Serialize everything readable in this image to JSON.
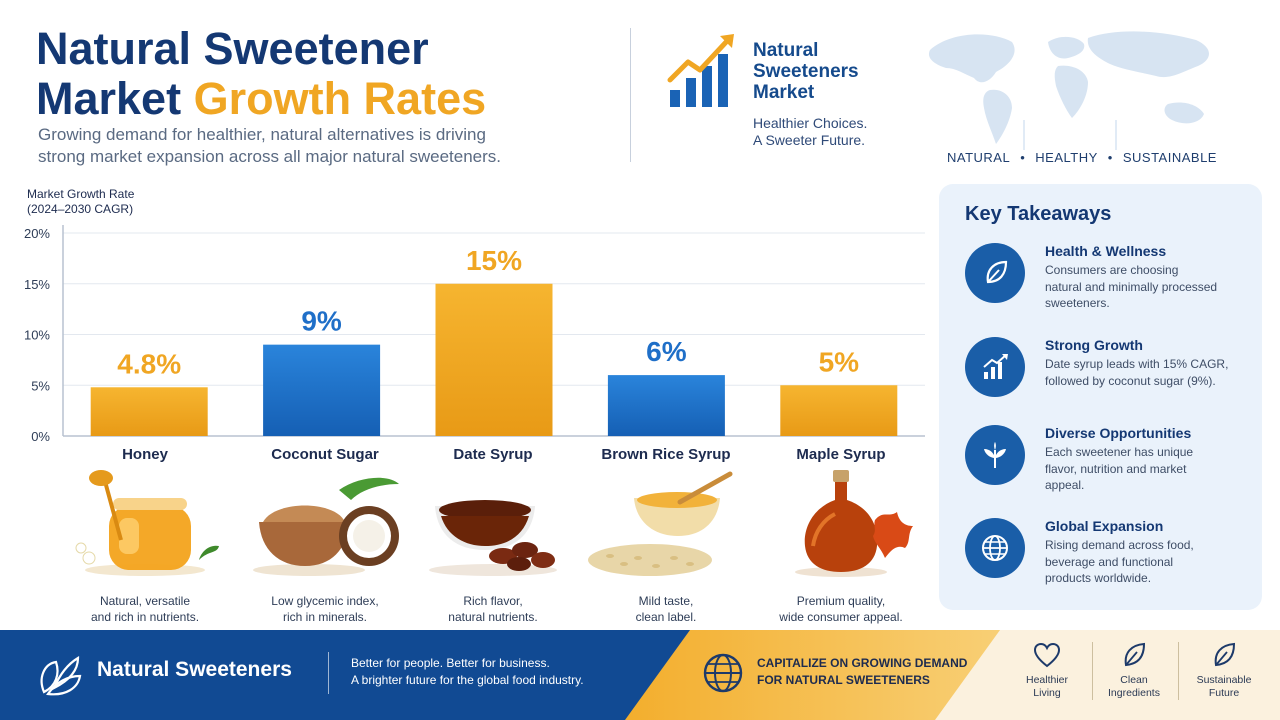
{
  "header": {
    "title_line1": "Natural Sweetener",
    "title_line2_part1": "Market ",
    "title_line2_accent": "Growth Rates",
    "subtitle_line1": "Growing demand for healthier, natural alternatives is driving",
    "subtitle_line2": "strong market expansion across all major natural sweeteners."
  },
  "brand": {
    "name_line1": "Natural",
    "name_line2": "Sweeteners",
    "name_line3": "Market",
    "tag_line1": "Healthier Choices.",
    "tag_line2": "A Sweeter Future.",
    "pillars": [
      "NATURAL",
      "HEALTHY",
      "SUSTAINABLE"
    ],
    "separator": "•"
  },
  "chart_data": {
    "type": "bar",
    "ylabel_line1": "Market Growth Rate",
    "ylabel_line2": "(2024–2030 CAGR)",
    "ylim": [
      0,
      20
    ],
    "yticks": [
      0,
      5,
      10,
      15,
      20
    ],
    "ytick_labels": [
      "0%",
      "5%",
      "10%",
      "15%",
      "20%"
    ],
    "grid": true,
    "categories": [
      "Honey",
      "Coconut Sugar",
      "Date Syrup",
      "Brown Rice Syrup",
      "Maple Syrup"
    ],
    "values": [
      4.8,
      9,
      15,
      6,
      5
    ],
    "data_labels": [
      "4.8%",
      "9%",
      "15%",
      "6%",
      "5%"
    ],
    "bar_colors": [
      "#f0a623",
      "#1f6fc8",
      "#f0a623",
      "#1f6fc8",
      "#f0a623"
    ]
  },
  "products": [
    {
      "name": "Honey",
      "desc_line1": "Natural, versatile",
      "desc_line2": "and rich in nutrients."
    },
    {
      "name": "Coconut Sugar",
      "desc_line1": "Low glycemic index,",
      "desc_line2": "rich in minerals."
    },
    {
      "name": "Date Syrup",
      "desc_line1": "Rich flavor,",
      "desc_line2": "natural nutrients."
    },
    {
      "name": "Brown Rice Syrup",
      "desc_line1": "Mild taste,",
      "desc_line2": "clean label."
    },
    {
      "name": "Maple Syrup",
      "desc_line1": "Premium quality,",
      "desc_line2": "wide consumer appeal."
    }
  ],
  "takeaways": {
    "title": "Key Takeaways",
    "items": [
      {
        "icon": "leaf-icon",
        "title": "Health & Wellness",
        "l1": "Consumers are choosing",
        "l2": "natural and minimally processed",
        "l3": "sweeteners."
      },
      {
        "icon": "growth-chart-icon",
        "title": "Strong Growth",
        "l1": "Date syrup leads with 15% CAGR,",
        "l2": "followed by coconut sugar (9%).",
        "l3": ""
      },
      {
        "icon": "sprout-icon",
        "title": "Diverse Opportunities",
        "l1": "Each sweetener has unique",
        "l2": "flavor, nutrition and market",
        "l3": "appeal."
      },
      {
        "icon": "globe-icon",
        "title": "Global Expansion",
        "l1": "Rising demand across food,",
        "l2": "beverage and functional",
        "l3": "products worldwide."
      }
    ]
  },
  "footer": {
    "brand": "Natural Sweeteners",
    "msg_line1": "Better for people. Better for business.",
    "msg_line2": "A brighter future for the global food industry.",
    "cta_line1": "CAPITALIZE ON GROWING DEMAND",
    "cta_line2": "FOR NATURAL SWEETENERS",
    "badges": [
      {
        "icon": "heart-icon",
        "l1": "Healthier",
        "l2": "Living"
      },
      {
        "icon": "leaf-icon",
        "l1": "Clean",
        "l2": "Ingredients"
      },
      {
        "icon": "leaf-icon",
        "l1": "Sustainable",
        "l2": "Future"
      }
    ],
    "colors": {
      "blue": "#114a93",
      "gold": "#f3ae2d",
      "cream": "#fbf1de"
    }
  }
}
